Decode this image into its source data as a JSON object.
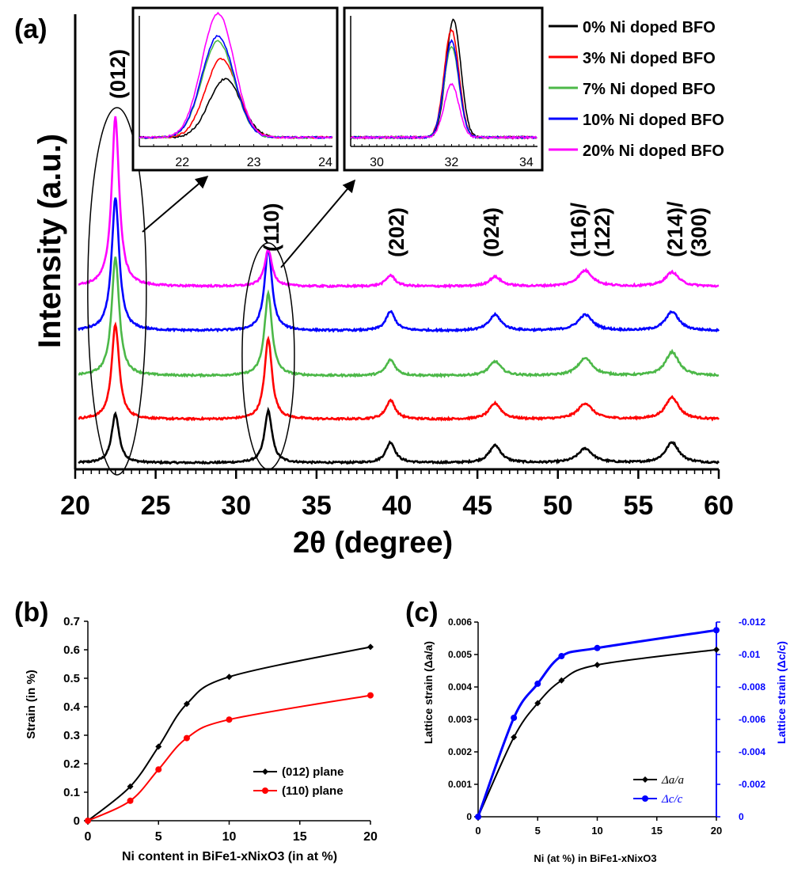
{
  "chart_data": [
    {
      "panel": "(a)",
      "type": "line",
      "xlabel": "2θ (degree)",
      "ylabel": "Intensity (a.u.)",
      "xlim": [
        20,
        60
      ],
      "xticks": [
        "20",
        "25",
        "30",
        "35",
        "40",
        "45",
        "50",
        "55",
        "60"
      ],
      "series": [
        {
          "name": "0% Ni doped BFO",
          "color": "#000000"
        },
        {
          "name": "3% Ni doped BFO",
          "color": "#ff0000"
        },
        {
          "name": "7% Ni doped BFO",
          "color": "#4cb848"
        },
        {
          "name": "10% Ni doped BFO",
          "color": "#0000ff"
        },
        {
          "name": "20% Ni doped BFO",
          "color": "#ff00ff"
        }
      ],
      "peak_positions_deg": [
        22.5,
        32.0,
        39.6,
        46.1,
        51.7,
        57.1
      ],
      "peak_labels": [
        "(012)",
        "(110)",
        "(202)",
        "(024)",
        "(116)/\n(122)",
        "(214)/\n(300)"
      ],
      "insets": [
        {
          "xlim": [
            21.4,
            24.1
          ],
          "xticks": [
            "22",
            "23",
            "24"
          ],
          "peak_center": [
            22.6,
            22.55,
            22.5,
            22.5,
            22.5
          ],
          "peak_height": [
            0.46,
            0.62,
            0.76,
            0.8,
            0.98
          ]
        },
        {
          "xlim": [
            29.3,
            34.3
          ],
          "xticks": [
            "30",
            "32",
            "34"
          ],
          "peak_center": [
            32.05,
            32.0,
            32.0,
            32.0,
            32.0
          ],
          "peak_height": [
            0.93,
            0.85,
            0.72,
            0.76,
            0.42
          ]
        }
      ]
    },
    {
      "panel": "(b)",
      "type": "line",
      "xlabel": "Ni content in BiFe1-xNixO3 (in at %)",
      "ylabel": "Strain (in %)",
      "xlim": [
        0,
        20
      ],
      "ylim": [
        0,
        0.7
      ],
      "xticks": [
        "0",
        "5",
        "10",
        "15",
        "20"
      ],
      "yticks": [
        "0",
        "0.1",
        "0.2",
        "0.3",
        "0.4",
        "0.5",
        "0.6",
        "0.7"
      ],
      "x": [
        0,
        3,
        5,
        7,
        10,
        20
      ],
      "series": [
        {
          "name": "(012) plane",
          "color": "#000000",
          "marker": "diamond",
          "values": [
            0,
            0.12,
            0.26,
            0.41,
            0.505,
            0.61
          ]
        },
        {
          "name": "(110) plane",
          "color": "#ff0000",
          "marker": "circle",
          "values": [
            0,
            0.07,
            0.18,
            0.29,
            0.355,
            0.44
          ]
        }
      ]
    },
    {
      "panel": "(c)",
      "type": "line",
      "xlabel": "Ni (at %) in BiFe1-xNixO3",
      "ylabel": "Lattice strain (Δa/a)",
      "y2label": "Lattice strain (Δc/c)",
      "xlim": [
        0,
        20
      ],
      "ylim": [
        0,
        0.006
      ],
      "y2lim": [
        0,
        -0.012
      ],
      "xticks": [
        "0",
        "5",
        "10",
        "15",
        "20"
      ],
      "yticks": [
        "0",
        "0.001",
        "0.002",
        "0.003",
        "0.004",
        "0.005",
        "0.006"
      ],
      "y2ticks": [
        "0",
        "-0.002",
        "-0.004",
        "-0.006",
        "-0.008",
        "-0.01",
        "-0.012"
      ],
      "x": [
        0,
        3,
        5,
        7,
        10,
        20
      ],
      "series": [
        {
          "name": "Δa/a",
          "color": "#000000",
          "marker": "diamond",
          "axis": "left",
          "values": [
            0,
            0.00245,
            0.0035,
            0.0042,
            0.00468,
            0.00515
          ]
        },
        {
          "name": "Δc/c",
          "color": "#0000ff",
          "marker": "circle",
          "axis": "right",
          "values": [
            0,
            -0.0061,
            -0.0082,
            -0.0099,
            -0.0104,
            -0.0115
          ]
        }
      ]
    }
  ]
}
